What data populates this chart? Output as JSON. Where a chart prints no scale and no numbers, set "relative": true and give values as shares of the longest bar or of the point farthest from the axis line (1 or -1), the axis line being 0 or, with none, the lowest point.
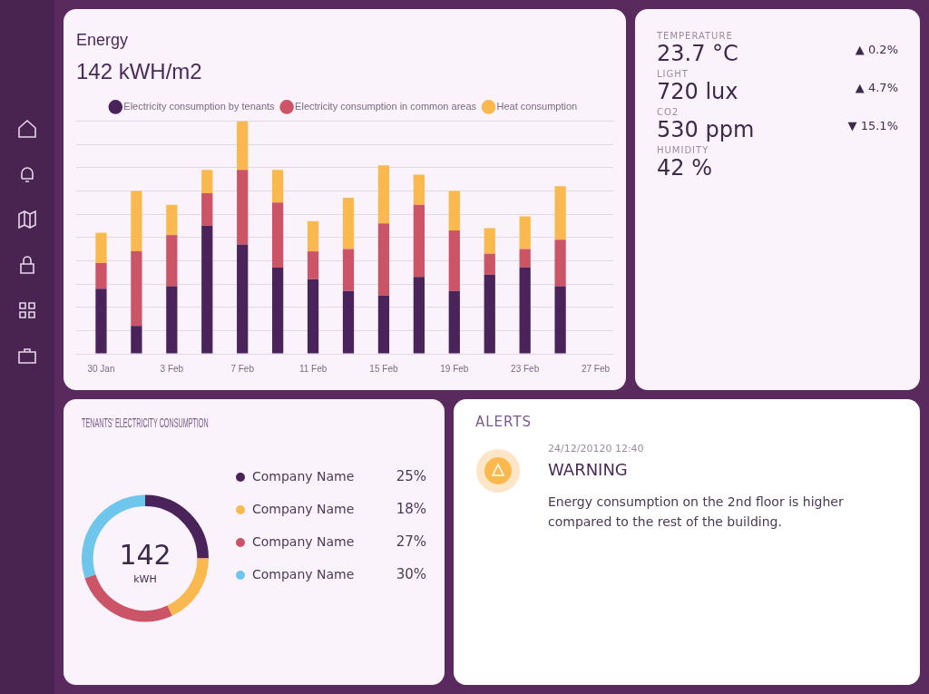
{
  "chart_data": [
    {
      "type": "bar",
      "title": "Energy",
      "subtitle": "142 kWH/m2",
      "stacked": true,
      "relative": true,
      "legend": "top",
      "grid": "y",
      "tick_labels": "x",
      "categories": [
        "30 Jan",
        null,
        "3 Feb",
        null,
        "7 Feb",
        null,
        "11 Feb",
        null,
        "15 Feb",
        null,
        "19 Feb",
        null,
        "23 Feb",
        null,
        "27 Feb"
      ],
      "series": [
        {
          "name": "Electricity consumption by tenants",
          "color": "#4a235a",
          "values": [
            0.28,
            0.12,
            0.29,
            0.55,
            0.47,
            0.37,
            0.32,
            0.27,
            0.25,
            0.33,
            0.27,
            0.34,
            0.37,
            0.29,
            null
          ]
        },
        {
          "name": "Electricity consumption in common areas",
          "color": "#cc5467",
          "values": [
            0.11,
            0.32,
            0.22,
            0.14,
            0.32,
            0.28,
            0.12,
            0.18,
            0.31,
            0.31,
            0.26,
            0.09,
            0.08,
            0.2,
            null
          ]
        },
        {
          "name": "Heat consumption",
          "color": "#f9b94f",
          "values": [
            0.13,
            0.26,
            0.13,
            0.1,
            0.21,
            0.14,
            0.13,
            0.22,
            0.25,
            0.13,
            0.17,
            0.11,
            0.14,
            0.23,
            null
          ]
        }
      ]
    },
    {
      "type": "donut",
      "title": "TENANTS' ELECTRICITY CONSUMPTION",
      "legend": "right",
      "categories": [
        "Company Name",
        "Company Name",
        "Company Name",
        "Company Name"
      ],
      "values": [
        25,
        18,
        27,
        30
      ],
      "value_labels": [
        "25%",
        "18%",
        "27%",
        "30%"
      ],
      "colors": [
        "#4a235a",
        "#f9b94f",
        "#cc5467",
        "#6ec6ec"
      ],
      "annotations": [
        "142",
        "kWH"
      ]
    },
    {
      "type": "other",
      "annotations": [
        "TEMPERATURE",
        "23.7 °C",
        "▲ 0.2%",
        "LIGHT",
        "720 lux",
        "▲ 4.7%",
        "CO2",
        "530 ppm",
        "▼ 15.1%",
        "HUMIDITY",
        "42 %"
      ]
    },
    {
      "type": "other",
      "title": "ALERTS",
      "annotations": [
        "24/12/20120 12:40",
        "WARNING",
        "Energy consumption on the 2nd floor is higher compared to the rest of the building."
      ]
    }
  ]
}
